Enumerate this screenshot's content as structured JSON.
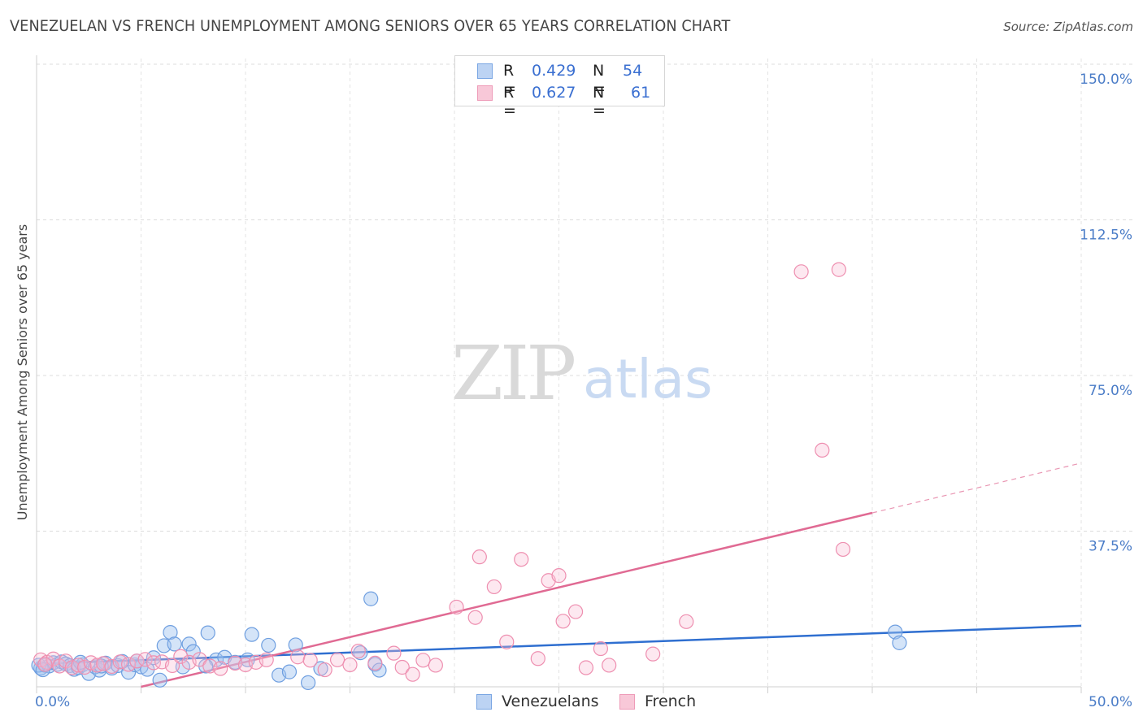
{
  "header": {
    "title": "VENEZUELAN VS FRENCH UNEMPLOYMENT AMONG SENIORS OVER 65 YEARS CORRELATION CHART",
    "source": "Source: ZipAtlas.com"
  },
  "watermark": {
    "zip": "ZIP",
    "atlas": "atlas"
  },
  "legend": {
    "rows": [
      {
        "r_label": "R =",
        "r_value": "0.429",
        "n_label": "N =",
        "n_value": "54"
      },
      {
        "r_label": "R =",
        "r_value": "0.627",
        "n_label": "N =",
        "n_value": "61"
      }
    ]
  },
  "bottom_legend": {
    "venezuelans": "Venezuelans",
    "french": "French"
  },
  "chart_data": {
    "type": "scatter",
    "title": "VENEZUELAN VS FRENCH UNEMPLOYMENT AMONG SENIORS OVER 65 YEARS CORRELATION CHART",
    "ylabel": "Unemployment Among Seniors over 65 years",
    "xlabel": "",
    "xlim": [
      0,
      50
    ],
    "ylim": [
      0,
      155
    ],
    "x_tick_labels": [
      "0.0%",
      "50.0%"
    ],
    "y_ticks": [
      37.5,
      75.0,
      112.5,
      150.0
    ],
    "y_tick_labels": [
      "37.5%",
      "75.0%",
      "112.5%",
      "150.0%"
    ],
    "grid": true,
    "legend_position": "top-center",
    "colors": {
      "venezuelans": "#6f9fe0",
      "french": "#ee8fb0",
      "venezuelans_line": "#2f6fd0",
      "french_line": "#e06a93",
      "tick_text": "#4a7cc7"
    },
    "series": [
      {
        "name": "Venezuelans",
        "r": 0.429,
        "n": 54,
        "trend": {
          "x": [
            0.0,
            50.0
          ],
          "y": [
            5.5,
            14.7
          ],
          "style": "solid"
        },
        "points": [
          [
            0.2,
            4.5
          ],
          [
            0.4,
            5.2
          ],
          [
            0.6,
            5.0
          ],
          [
            0.8,
            5.8
          ],
          [
            1.0,
            5.4
          ],
          [
            1.2,
            6.0
          ],
          [
            1.4,
            5.5
          ],
          [
            1.6,
            5.1
          ],
          [
            1.8,
            4.2
          ],
          [
            2.0,
            4.6
          ],
          [
            2.2,
            5.3
          ],
          [
            2.5,
            3.2
          ],
          [
            2.8,
            4.8
          ],
          [
            3.0,
            4.0
          ],
          [
            3.3,
            5.7
          ],
          [
            3.6,
            4.5
          ],
          [
            3.9,
            5.1
          ],
          [
            4.1,
            6.1
          ],
          [
            4.4,
            3.5
          ],
          [
            4.7,
            5.3
          ],
          [
            5.0,
            4.8
          ],
          [
            5.3,
            4.2
          ],
          [
            5.6,
            7.0
          ],
          [
            5.9,
            1.6
          ],
          [
            6.1,
            9.9
          ],
          [
            6.4,
            13.1
          ],
          [
            6.6,
            10.3
          ],
          [
            7.0,
            4.8
          ],
          [
            7.3,
            10.3
          ],
          [
            7.5,
            8.5
          ],
          [
            8.2,
            13.0
          ],
          [
            8.6,
            6.5
          ],
          [
            9.0,
            7.1
          ],
          [
            9.5,
            5.9
          ],
          [
            10.3,
            12.6
          ],
          [
            11.1,
            10.0
          ],
          [
            11.6,
            2.8
          ],
          [
            12.1,
            3.6
          ],
          [
            12.4,
            10.1
          ],
          [
            13.0,
            1.0
          ],
          [
            13.6,
            4.4
          ],
          [
            15.5,
            8.2
          ],
          [
            16.0,
            21.2
          ],
          [
            16.2,
            5.4
          ],
          [
            16.4,
            4.0
          ],
          [
            0.1,
            5.2
          ],
          [
            0.3,
            4.1
          ],
          [
            2.1,
            5.9
          ],
          [
            3.1,
            5.0
          ],
          [
            4.8,
            6.2
          ],
          [
            8.1,
            5.0
          ],
          [
            10.1,
            6.5
          ],
          [
            41.1,
            13.2
          ],
          [
            41.3,
            10.6
          ]
        ]
      },
      {
        "name": "French",
        "r": 0.627,
        "n": 61,
        "trend": {
          "x": [
            5.0,
            40.0
          ],
          "y": [
            0.0,
            41.9
          ],
          "style": "solid",
          "extension": {
            "x": [
              40.0,
              50.0
            ],
            "y": [
              41.9,
              53.9
            ],
            "style": "dashed"
          }
        },
        "points": [
          [
            0.2,
            6.5
          ],
          [
            0.5,
            5.9
          ],
          [
            0.8,
            6.7
          ],
          [
            1.1,
            5.0
          ],
          [
            1.4,
            6.2
          ],
          [
            1.7,
            4.6
          ],
          [
            2.0,
            5.2
          ],
          [
            2.3,
            4.7
          ],
          [
            2.6,
            5.8
          ],
          [
            2.9,
            5.2
          ],
          [
            3.2,
            5.6
          ],
          [
            3.6,
            4.9
          ],
          [
            4.0,
            6.0
          ],
          [
            4.4,
            5.4
          ],
          [
            4.8,
            6.2
          ],
          [
            5.2,
            6.6
          ],
          [
            5.6,
            5.8
          ],
          [
            6.0,
            6.0
          ],
          [
            6.5,
            5.1
          ],
          [
            6.9,
            7.3
          ],
          [
            7.3,
            5.9
          ],
          [
            7.8,
            6.6
          ],
          [
            8.3,
            5.0
          ],
          [
            8.8,
            4.4
          ],
          [
            9.5,
            5.7
          ],
          [
            10.0,
            5.3
          ],
          [
            10.5,
            5.9
          ],
          [
            11.0,
            6.5
          ],
          [
            12.5,
            7.2
          ],
          [
            13.1,
            6.4
          ],
          [
            13.8,
            4.1
          ],
          [
            14.4,
            6.5
          ],
          [
            15.0,
            5.3
          ],
          [
            15.4,
            8.6
          ],
          [
            16.2,
            5.7
          ],
          [
            17.1,
            8.1
          ],
          [
            17.5,
            4.7
          ],
          [
            18.0,
            3.0
          ],
          [
            18.5,
            6.4
          ],
          [
            19.1,
            5.2
          ],
          [
            20.1,
            19.2
          ],
          [
            21.0,
            16.7
          ],
          [
            21.2,
            31.3
          ],
          [
            21.9,
            24.1
          ],
          [
            22.5,
            10.8
          ],
          [
            23.2,
            30.7
          ],
          [
            24.0,
            6.8
          ],
          [
            24.5,
            25.6
          ],
          [
            25.0,
            26.8
          ],
          [
            25.2,
            15.8
          ],
          [
            25.8,
            18.1
          ],
          [
            26.3,
            4.6
          ],
          [
            27.0,
            9.2
          ],
          [
            27.4,
            5.2
          ],
          [
            29.5,
            7.9
          ],
          [
            31.1,
            15.7
          ],
          [
            36.6,
            100.0
          ],
          [
            37.6,
            57.0
          ],
          [
            38.4,
            100.5
          ],
          [
            38.6,
            33.1
          ],
          [
            0.4,
            5.4
          ]
        ]
      }
    ]
  }
}
